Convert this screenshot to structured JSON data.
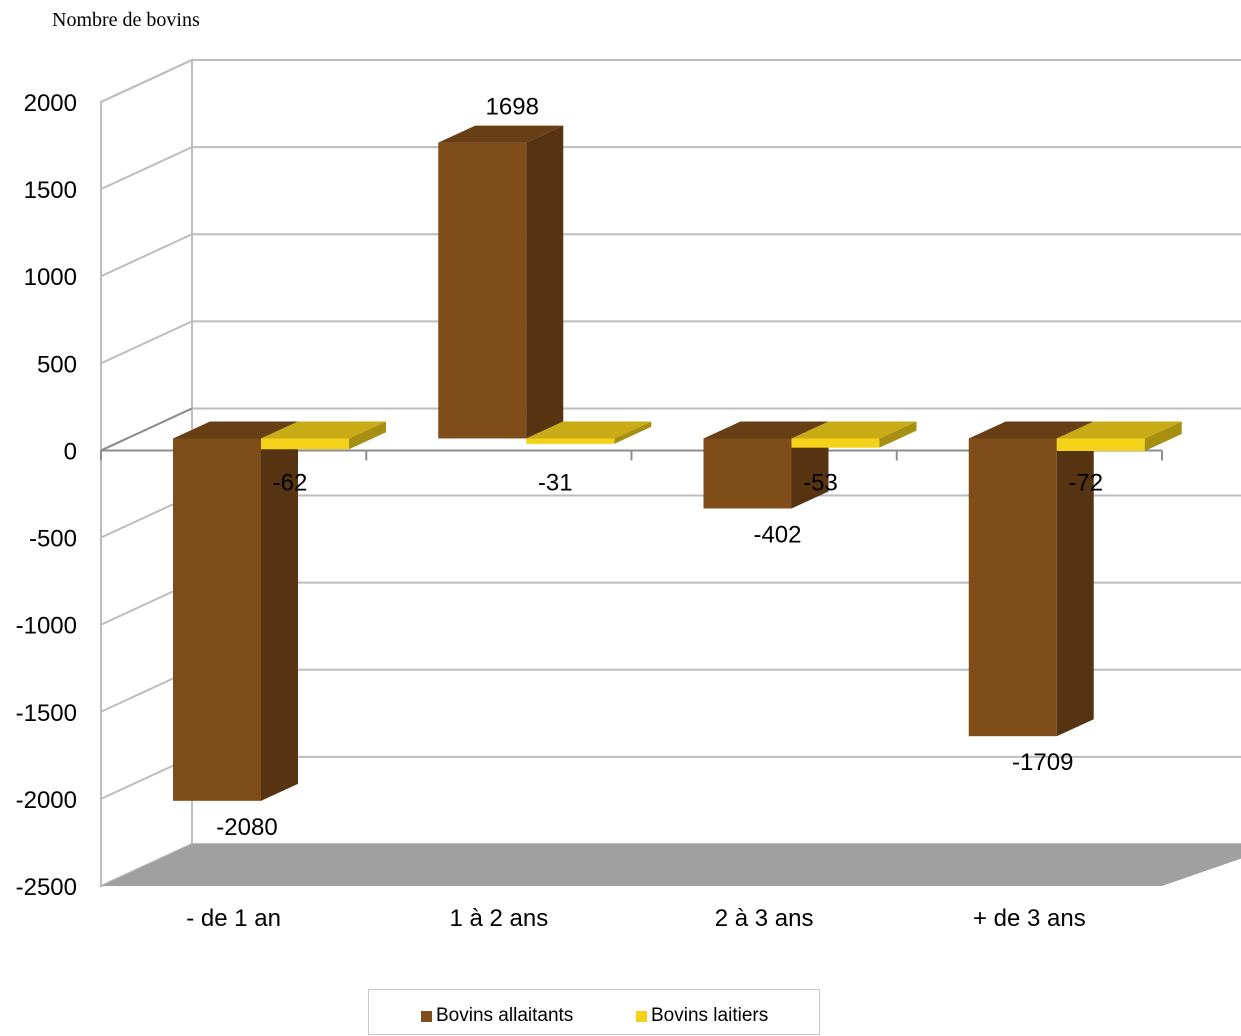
{
  "chart_data": {
    "type": "bar",
    "title": "",
    "ylabel": "Nombre de bovins",
    "xlabel": "",
    "categories": [
      "- de 1 an",
      "1 à 2 ans",
      "2 à 3 ans",
      "+ de 3 ans"
    ],
    "series": [
      {
        "name": "Bovins allaitants",
        "color": "#7f4d19",
        "values": [
          -2080,
          1698,
          -402,
          -1709
        ]
      },
      {
        "name": "Bovins laitiers",
        "color": "#f5d21a",
        "values": [
          -62,
          -31,
          -53,
          -72
        ]
      }
    ],
    "ylim": [
      -2500,
      2000
    ],
    "yticks": [
      "2000",
      "1500",
      "1000",
      "500",
      "0",
      "-500",
      "-1000",
      "-1500",
      "-2000",
      "-2500"
    ],
    "data_labels": [
      [
        "-2080",
        "1698",
        "-402",
        "-1709"
      ],
      [
        "-62",
        "-31",
        "-53",
        "-72"
      ]
    ],
    "grid": true,
    "legend_position": "bottom",
    "style": "3d"
  }
}
